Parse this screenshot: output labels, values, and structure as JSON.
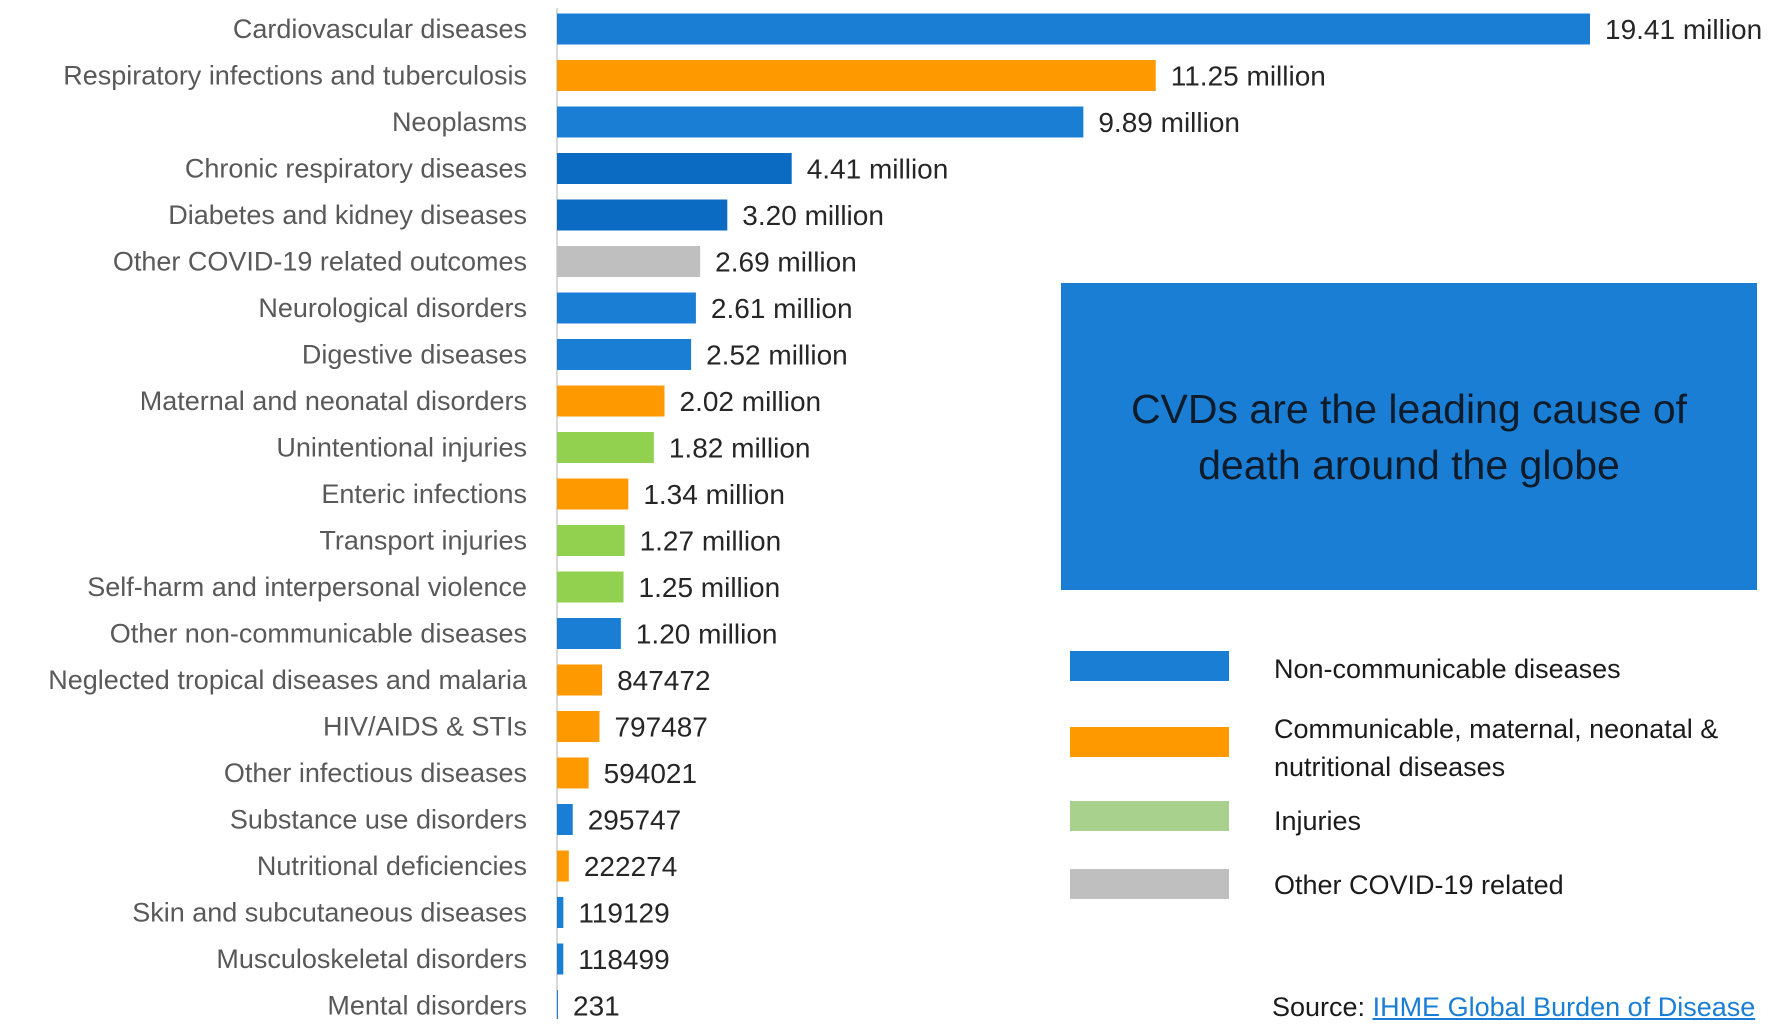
{
  "chart_data": {
    "type": "bar",
    "orientation": "horizontal",
    "categories": [
      "Cardiovascular diseases",
      "Respiratory infections and tuberculosis",
      "Neoplasms",
      "Chronic respiratory diseases",
      "Diabetes and kidney diseases",
      "Other COVID-19 related outcomes",
      "Neurological disorders",
      "Digestive diseases",
      "Maternal and neonatal disorders",
      "Unintentional injuries",
      "Enteric infections",
      "Transport injuries",
      "Self-harm and interpersonal violence",
      "Other non-communicable diseases",
      "Neglected tropical diseases and malaria",
      "HIV/AIDS & STIs",
      "Other infectious diseases",
      "Substance use disorders",
      "Nutritional deficiencies",
      "Skin and subcutaneous diseases",
      "Musculoskeletal disorders",
      "Mental disorders"
    ],
    "values": [
      19410000,
      11250000,
      9890000,
      4410000,
      3200000,
      2690000,
      2610000,
      2520000,
      2020000,
      1820000,
      1340000,
      1270000,
      1250000,
      1200000,
      847472,
      797487,
      594021,
      295747,
      222274,
      119129,
      118499,
      231
    ],
    "data_labels": [
      "19.41 million",
      "11.25 million",
      "9.89 million",
      "4.41 million",
      "3.20 million",
      "2.69 million",
      "2.61 million",
      "2.52 million",
      "2.02 million",
      "1.82 million",
      "1.34 million",
      "1.27 million",
      "1.25 million",
      "1.20 million",
      "847472",
      "797487",
      "594021",
      "295747",
      "222274",
      "119129",
      "118499",
      "231"
    ],
    "groups": [
      "ncd",
      "cmnn",
      "ncd",
      "ncd_dark",
      "ncd_dark",
      "covid",
      "ncd",
      "ncd",
      "cmnn",
      "inj",
      "cmnn",
      "inj",
      "inj",
      "ncd",
      "cmnn",
      "cmnn",
      "cmnn",
      "ncd",
      "cmnn",
      "ncd",
      "ncd",
      "ncd"
    ],
    "xlim": [
      0,
      19410000
    ],
    "grid": false,
    "legend_position": "right",
    "colors": {
      "ncd": "#1a7fd4",
      "ncd_dark": "#0b6bc3",
      "cmnn": "#ff9900",
      "inj": "#92d050",
      "covid": "#bfbfbf"
    }
  },
  "callout": {
    "text": "CVDs are the leading cause of death around the globe",
    "background": "#1a7fd4"
  },
  "legend": [
    {
      "label": "Non-communicable diseases",
      "color": "#1a7fd4"
    },
    {
      "label": "Communicable, maternal, neonatal & nutritional diseases",
      "color": "#ff9900"
    },
    {
      "label": "Injuries",
      "color": "#a9d18e"
    },
    {
      "label": "Other COVID-19 related",
      "color": "#bfbfbf"
    }
  ],
  "source": {
    "prefix": "Source: ",
    "link_text": "IHME Global Burden of Disease"
  }
}
